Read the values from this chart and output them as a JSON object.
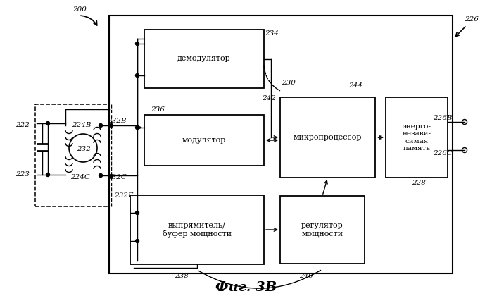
{
  "title": "Фиг. 3В",
  "bg_color": "#ffffff",
  "label_200": "200",
  "label_226": "226",
  "label_222": "222",
  "label_223": "223",
  "label_232": "232",
  "label_232B": "232В",
  "label_232C": "232С",
  "label_232E": "232Е",
  "label_224B": "224В",
  "label_224C": "224С",
  "label_234": "234",
  "label_236": "236",
  "label_242": "242",
  "label_244": "244",
  "label_230": "230",
  "label_228": "228",
  "label_238": "238",
  "label_240": "240",
  "label_226B": "226В",
  "label_226C": "226С",
  "box_demod": "демодулятор",
  "box_mod": "модулятор",
  "box_micro": "микропроцессор",
  "box_mem": "энерго-\nнезави-\nсимая\nпамять",
  "box_rect": "выпрямитель/\nбуфер мощности",
  "box_reg": "регулятор\nмощности"
}
